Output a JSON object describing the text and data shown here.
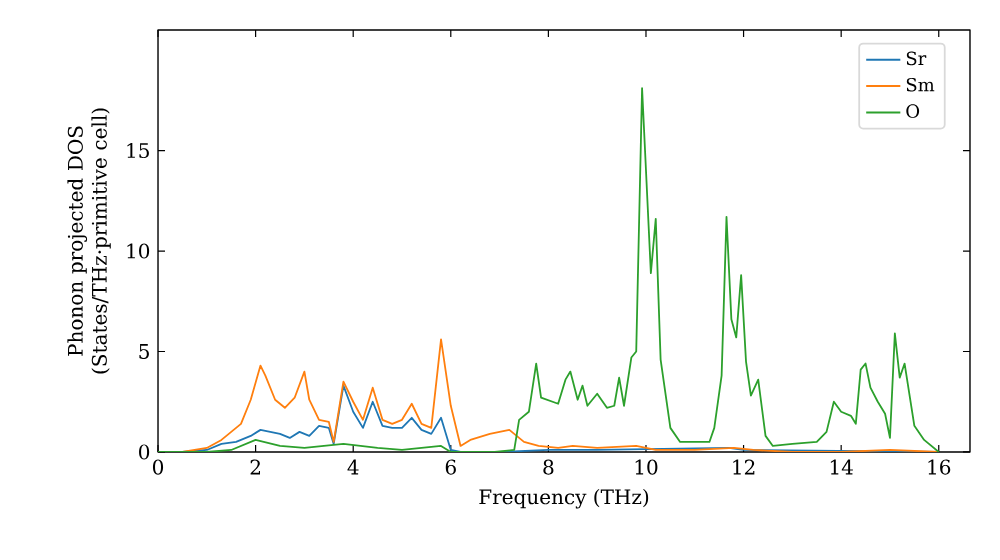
{
  "chart_data": {
    "type": "line",
    "xlabel": "Frequency (THz)",
    "ylabel": "Phonon projected DOS (States/THz·primitive cell)",
    "xlim": [
      0,
      16.64
    ],
    "ylim": [
      0,
      21
    ],
    "xticks": [
      0,
      2,
      4,
      6,
      8,
      10,
      12,
      14,
      16
    ],
    "yticks": [
      0,
      5,
      10,
      15
    ],
    "legend": "top right",
    "grid": false,
    "marker": "none",
    "line_style": "solid",
    "series": [
      {
        "name": "Sr",
        "color": "#1f77b4",
        "x": [
          0,
          0.5,
          1.0,
          1.3,
          1.6,
          1.9,
          2.1,
          2.3,
          2.5,
          2.7,
          2.9,
          3.1,
          3.3,
          3.5,
          3.6,
          3.8,
          4.0,
          4.2,
          4.4,
          4.6,
          4.8,
          5.0,
          5.2,
          5.4,
          5.6,
          5.8,
          6.0,
          6.2,
          7.0,
          8.0,
          9.0,
          9.8,
          10.2,
          11.0,
          11.7,
          12.0,
          16.0
        ],
        "values": [
          0,
          0,
          0.1,
          0.4,
          0.5,
          0.8,
          1.1,
          1.0,
          0.9,
          0.7,
          1.0,
          0.8,
          1.3,
          1.2,
          0.4,
          3.3,
          2.0,
          1.2,
          2.5,
          1.3,
          1.2,
          1.2,
          1.7,
          1.1,
          0.9,
          1.7,
          0.1,
          0,
          0,
          0.1,
          0.1,
          null,
          null,
          null,
          0.2,
          0.1,
          0
        ]
      },
      {
        "name": "Sm",
        "color": "#ff7f0e",
        "x": [
          0,
          0.5,
          1.0,
          1.3,
          1.5,
          1.7,
          1.9,
          2.1,
          2.2,
          2.4,
          2.6,
          2.8,
          3.0,
          3.1,
          3.3,
          3.5,
          3.6,
          3.8,
          4.0,
          4.2,
          4.4,
          4.6,
          4.8,
          5.0,
          5.2,
          5.4,
          5.6,
          5.8,
          6.0,
          6.2,
          6.4,
          6.8,
          7.2,
          7.5,
          7.8,
          8.2,
          8.5,
          9.0,
          9.8,
          10.2,
          11.0,
          11.8,
          12.2,
          13.0,
          14.0,
          15.0,
          16.0
        ],
        "values": [
          0,
          0,
          0.2,
          0.6,
          1.0,
          1.4,
          2.6,
          4.3,
          3.8,
          2.6,
          2.2,
          2.7,
          4.0,
          2.6,
          1.6,
          1.5,
          0.5,
          3.5,
          2.5,
          1.6,
          3.2,
          1.6,
          1.4,
          1.6,
          2.4,
          1.4,
          1.2,
          5.6,
          2.3,
          0.3,
          0.6,
          0.9,
          1.1,
          0.5,
          0.3,
          0.2,
          0.3,
          0.2,
          0.3,
          0.1,
          0.1,
          0.2,
          0.1,
          0,
          0,
          0.1,
          0
        ]
      },
      {
        "name": "O",
        "color": "#2ca02c",
        "x": [
          0,
          1.0,
          1.5,
          2.0,
          2.5,
          3.0,
          3.8,
          4.5,
          5.0,
          5.8,
          6.0,
          6.9,
          7.3,
          7.4,
          7.6,
          7.75,
          7.85,
          8.2,
          8.35,
          8.45,
          8.6,
          8.7,
          8.8,
          9.0,
          9.2,
          9.35,
          9.45,
          9.55,
          9.7,
          9.8,
          9.92,
          10.1,
          10.2,
          10.3,
          10.5,
          10.7,
          11.0,
          11.3,
          11.4,
          11.55,
          11.65,
          11.75,
          11.85,
          11.95,
          12.05,
          12.15,
          12.3,
          12.45,
          12.6,
          13.0,
          13.5,
          13.7,
          13.85,
          14.0,
          14.2,
          14.3,
          14.4,
          14.5,
          14.6,
          14.75,
          14.9,
          15.0,
          15.1,
          15.2,
          15.3,
          15.5,
          15.7,
          16.0
        ],
        "values": [
          0,
          0,
          0.1,
          0.6,
          0.3,
          0.2,
          0.4,
          0.2,
          0.1,
          0.3,
          0,
          0,
          0.1,
          1.6,
          2.0,
          4.4,
          2.7,
          2.4,
          3.6,
          4.0,
          2.6,
          3.3,
          2.3,
          2.9,
          2.2,
          2.3,
          3.7,
          2.3,
          4.7,
          5.0,
          18.1,
          8.9,
          11.6,
          4.6,
          1.2,
          0.5,
          0.5,
          0.5,
          1.2,
          3.8,
          11.7,
          6.6,
          5.7,
          8.8,
          4.5,
          2.8,
          3.6,
          0.8,
          0.3,
          0.4,
          0.5,
          1.0,
          2.5,
          2.0,
          1.8,
          1.4,
          4.1,
          4.4,
          3.2,
          2.5,
          1.9,
          0.7,
          5.9,
          3.7,
          4.4,
          1.3,
          0.6,
          0
        ]
      }
    ]
  }
}
